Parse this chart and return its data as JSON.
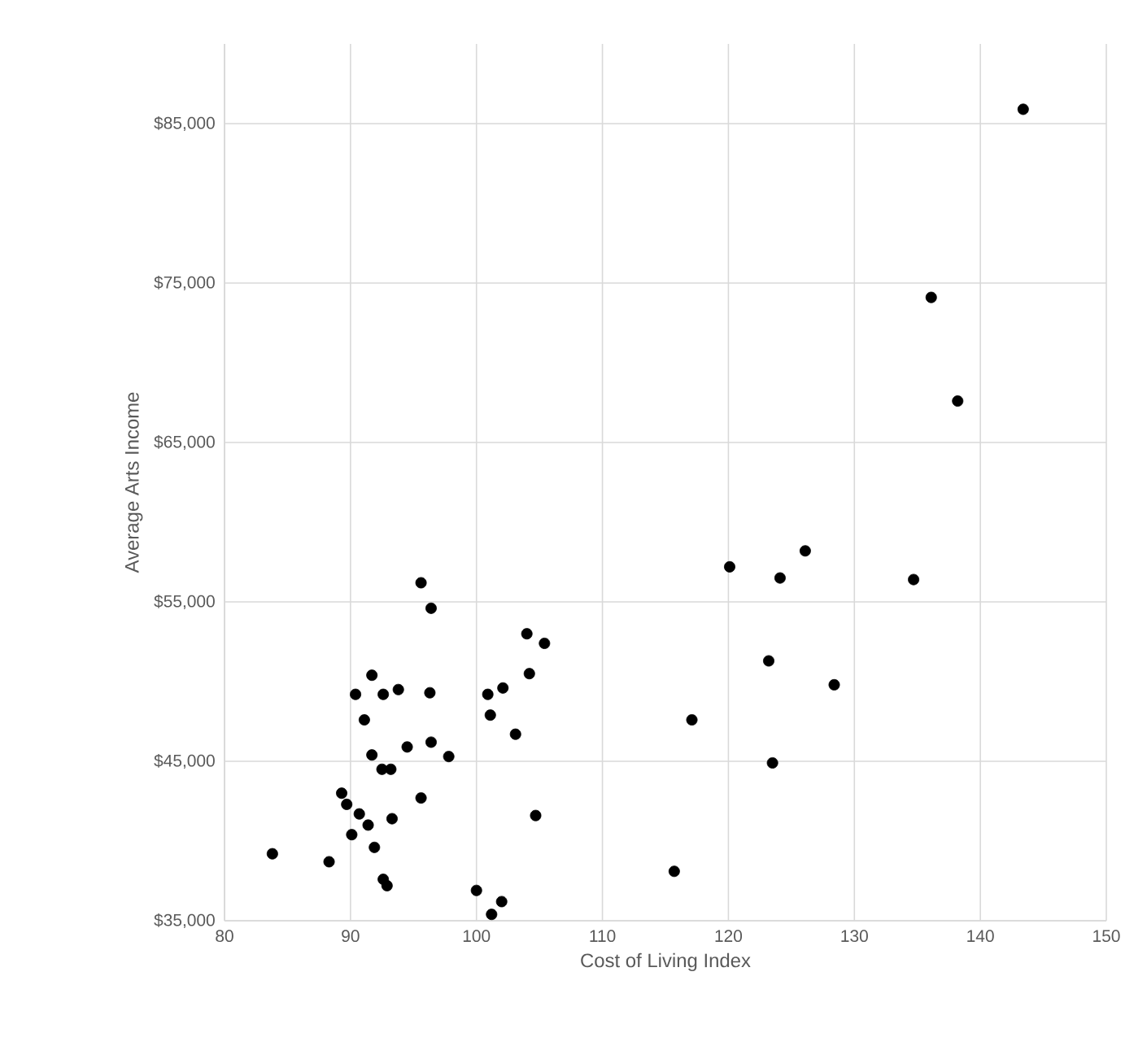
{
  "chart_data": {
    "type": "scatter",
    "xlabel": "Cost of Living Index",
    "ylabel": "Average Arts Income",
    "x": [
      143.4,
      136.1,
      138.2,
      95.6,
      96.4,
      104.0,
      105.4,
      91.7,
      104.2,
      90.4,
      92.6,
      93.8,
      96.3,
      100.9,
      102.1,
      91.1,
      101.1,
      103.1,
      94.5,
      96.4,
      97.8,
      91.7,
      92.5,
      93.2,
      89.3,
      89.7,
      90.7,
      91.4,
      93.3,
      95.6,
      90.1,
      91.9,
      83.8,
      88.3,
      92.6,
      92.9,
      100.0,
      102.0,
      101.2,
      104.7,
      115.7,
      117.1,
      120.1,
      124.1,
      126.1,
      134.7,
      123.2,
      128.4,
      123.5
    ],
    "values": [
      85900,
      74100,
      67600,
      56200,
      54600,
      53000,
      52400,
      50400,
      50500,
      49200,
      49200,
      49500,
      49300,
      49200,
      49600,
      47600,
      47900,
      46700,
      45900,
      46200,
      45300,
      45400,
      44500,
      44500,
      43000,
      42300,
      41700,
      41000,
      41400,
      42700,
      40400,
      39600,
      39200,
      38700,
      37600,
      37200,
      36900,
      36200,
      35400,
      41600,
      38100,
      47600,
      57200,
      56500,
      58200,
      56400,
      51300,
      49800,
      44900
    ],
    "color": "#000000",
    "marker": "circle",
    "grid": true,
    "xlim": [
      80,
      150
    ],
    "xticks": [
      80,
      90,
      100,
      110,
      120,
      130,
      140,
      150
    ],
    "ylim": [
      35000,
      90000
    ],
    "yticks": [
      {
        "value": 35000,
        "label": "$35,000"
      },
      {
        "value": 45000,
        "label": "$45,000"
      },
      {
        "value": 55000,
        "label": "$55,000"
      },
      {
        "value": 65000,
        "label": "$65,000"
      },
      {
        "value": 75000,
        "label": "$75,000"
      },
      {
        "value": 85000,
        "label": "$85,000"
      }
    ]
  }
}
